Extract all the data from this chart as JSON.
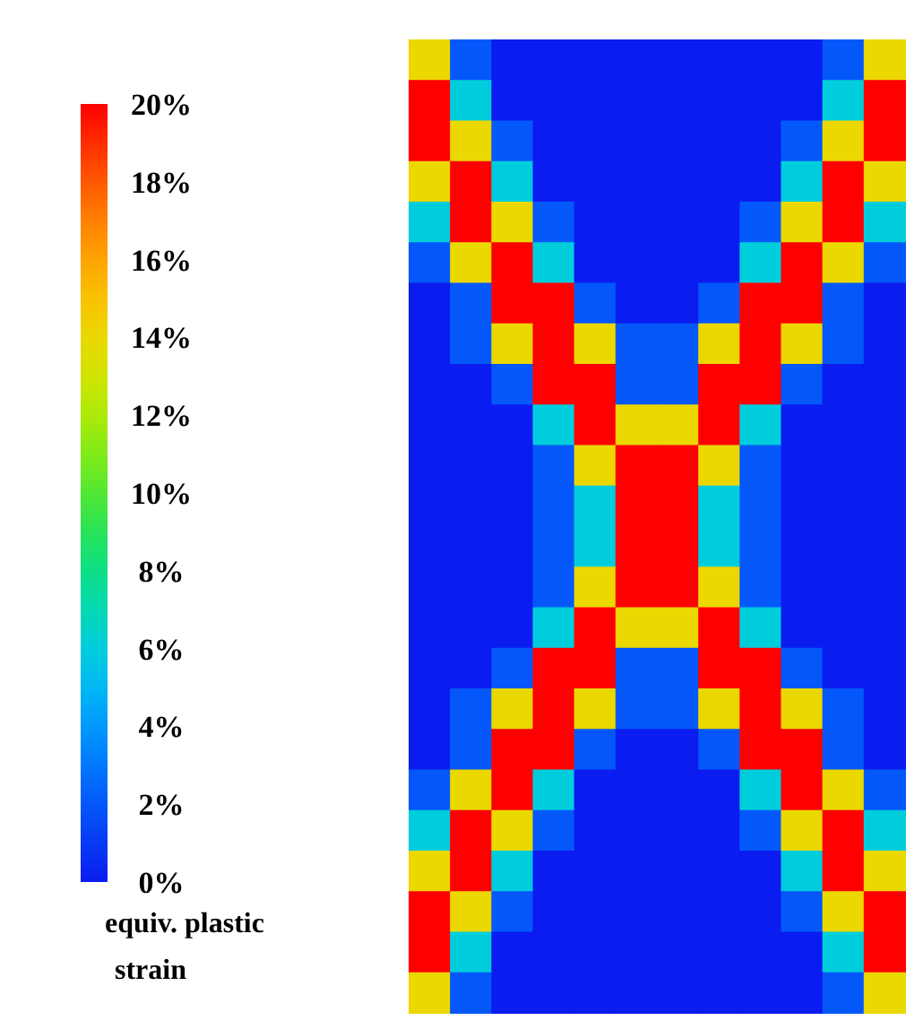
{
  "chart_data": {
    "type": "heatmap",
    "clabel": "equiv. plastic strain",
    "categories": [
      null,
      null,
      null,
      null,
      null,
      null,
      null,
      null,
      null,
      null,
      null,
      null
    ],
    "y_categories": [
      null,
      null,
      null,
      null,
      null,
      null,
      null,
      null,
      null,
      null,
      null,
      null,
      null,
      null,
      null,
      null,
      null,
      null,
      null,
      null,
      null,
      null,
      null,
      null
    ],
    "clim": [
      0,
      20
    ],
    "cticks": [
      {
        "value": 0,
        "label": "0%"
      },
      {
        "value": 2,
        "label": "2%"
      },
      {
        "value": 4,
        "label": "4%"
      },
      {
        "value": 6,
        "label": "6%"
      },
      {
        "value": 8,
        "label": "8%"
      },
      {
        "value": 10,
        "label": "10%"
      },
      {
        "value": 12,
        "label": "12%"
      },
      {
        "value": 14,
        "label": "14%"
      },
      {
        "value": 16,
        "label": "16%"
      },
      {
        "value": 18,
        "label": "18%"
      },
      {
        "value": 20,
        "label": "20%"
      }
    ],
    "cells": [
      [
        14,
        2,
        0,
        0,
        0,
        0,
        0,
        0,
        0,
        0,
        2,
        14
      ],
      [
        20,
        6,
        0,
        0,
        0,
        0,
        0,
        0,
        0,
        0,
        6,
        20
      ],
      [
        20,
        14,
        2,
        0,
        0,
        0,
        0,
        0,
        0,
        2,
        14,
        20
      ],
      [
        14,
        20,
        6,
        0,
        0,
        0,
        0,
        0,
        0,
        6,
        20,
        14
      ],
      [
        6,
        20,
        14,
        2,
        0,
        0,
        0,
        0,
        2,
        14,
        20,
        6
      ],
      [
        2,
        14,
        20,
        6,
        0,
        0,
        0,
        0,
        6,
        20,
        14,
        2
      ],
      [
        0,
        2,
        20,
        20,
        2,
        0,
        0,
        2,
        20,
        20,
        2,
        0
      ],
      [
        0,
        2,
        14,
        20,
        14,
        2,
        2,
        14,
        20,
        14,
        2,
        0
      ],
      [
        0,
        0,
        2,
        20,
        20,
        2,
        2,
        20,
        20,
        2,
        0,
        0
      ],
      [
        0,
        0,
        0,
        6,
        20,
        14,
        14,
        20,
        6,
        0,
        0,
        0
      ],
      [
        0,
        0,
        0,
        2,
        14,
        20,
        20,
        14,
        2,
        0,
        0,
        0
      ],
      [
        0,
        0,
        0,
        2,
        6,
        20,
        20,
        6,
        2,
        0,
        0,
        0
      ],
      [
        0,
        0,
        0,
        2,
        6,
        20,
        20,
        6,
        2,
        0,
        0,
        0
      ],
      [
        0,
        0,
        0,
        2,
        14,
        20,
        20,
        14,
        2,
        0,
        0,
        0
      ],
      [
        0,
        0,
        0,
        6,
        20,
        14,
        14,
        20,
        6,
        0,
        0,
        0
      ],
      [
        0,
        0,
        2,
        20,
        20,
        2,
        2,
        20,
        20,
        2,
        0,
        0
      ],
      [
        0,
        2,
        14,
        20,
        14,
        2,
        2,
        14,
        20,
        14,
        2,
        0
      ],
      [
        0,
        2,
        20,
        20,
        2,
        0,
        0,
        2,
        20,
        20,
        2,
        0
      ],
      [
        2,
        14,
        20,
        6,
        0,
        0,
        0,
        0,
        6,
        20,
        14,
        2
      ],
      [
        6,
        20,
        14,
        2,
        0,
        0,
        0,
        0,
        2,
        14,
        20,
        6
      ],
      [
        14,
        20,
        6,
        0,
        0,
        0,
        0,
        0,
        0,
        6,
        20,
        14
      ],
      [
        20,
        14,
        2,
        0,
        0,
        0,
        0,
        0,
        0,
        2,
        14,
        20
      ],
      [
        20,
        6,
        0,
        0,
        0,
        0,
        0,
        0,
        0,
        0,
        6,
        20
      ],
      [
        14,
        2,
        0,
        0,
        0,
        0,
        0,
        0,
        0,
        0,
        2,
        14
      ]
    ]
  }
}
